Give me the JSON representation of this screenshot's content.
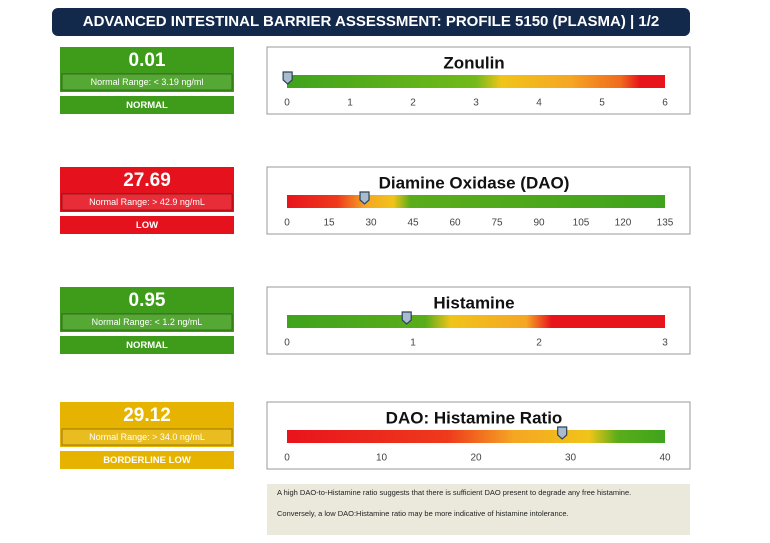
{
  "header": {
    "title": "ADVANCED INTESTINAL BARRIER ASSESSMENT: PROFILE 5150 (PLASMA) | 1/2"
  },
  "panels": [
    {
      "name": "Zonulin",
      "value": 0.01,
      "range": "Normal Range: < 3.19 ng/ml",
      "status": "NORMAL",
      "color": "#3f9c1a",
      "xlim": [
        0,
        6
      ],
      "xticks": [
        0,
        1,
        2,
        3,
        4,
        5,
        6
      ],
      "gradient": [
        [
          0,
          "#3fa31c"
        ],
        [
          3,
          "#72ba1a"
        ],
        [
          3.4,
          "#f0c419"
        ],
        [
          4.5,
          "#f5a623"
        ],
        [
          5.3,
          "#f06a1e"
        ],
        [
          5.6,
          "#e8141c"
        ],
        [
          6,
          "#e8141c"
        ]
      ]
    },
    {
      "name": "Diamine Oxidase (DAO)",
      "value": 27.69,
      "range": "Normal Range: > 42.9 ng/mL",
      "status": "LOW",
      "color": "#e5111d",
      "xlim": [
        0,
        135
      ],
      "xticks": [
        0,
        15,
        30,
        45,
        60,
        75,
        90,
        105,
        120,
        135
      ],
      "gradient": [
        [
          0,
          "#e8141c"
        ],
        [
          18,
          "#ee3a1c"
        ],
        [
          28,
          "#f5a623"
        ],
        [
          38,
          "#f0c419"
        ],
        [
          44,
          "#5aad1a"
        ],
        [
          135,
          "#3fa31c"
        ]
      ]
    },
    {
      "name": "Histamine",
      "value": 0.95,
      "range": "Normal Range: < 1.2 ng/mL",
      "status": "NORMAL",
      "color": "#3f9c1a",
      "xlim": [
        0,
        3
      ],
      "xticks": [
        0,
        1,
        2,
        3
      ],
      "gradient": [
        [
          0,
          "#3fa31c"
        ],
        [
          1.1,
          "#5aad1a"
        ],
        [
          1.3,
          "#f0c419"
        ],
        [
          1.9,
          "#f5a623"
        ],
        [
          2.1,
          "#e8141c"
        ],
        [
          3,
          "#e8141c"
        ]
      ]
    },
    {
      "name": "DAO: Histamine Ratio",
      "value": 29.12,
      "range": "Normal Range: > 34.0 ng/mL",
      "status": "BORDERLINE LOW",
      "color": "#e6b400",
      "xlim": [
        0,
        40
      ],
      "xticks": [
        0,
        10,
        20,
        30,
        40
      ],
      "gradient": [
        [
          0,
          "#e8141c"
        ],
        [
          17,
          "#ee3a1c"
        ],
        [
          24,
          "#f5a623"
        ],
        [
          32,
          "#f0c419"
        ],
        [
          35,
          "#5aad1a"
        ],
        [
          40,
          "#3fa31c"
        ]
      ]
    }
  ],
  "note": [
    "A high DAO-to-Histamine ratio suggests that there is sufficient DAO present to degrade any free histamine.",
    "Conversely, a low DAO:Histamine ratio may be more indicative of histamine intolerance."
  ]
}
